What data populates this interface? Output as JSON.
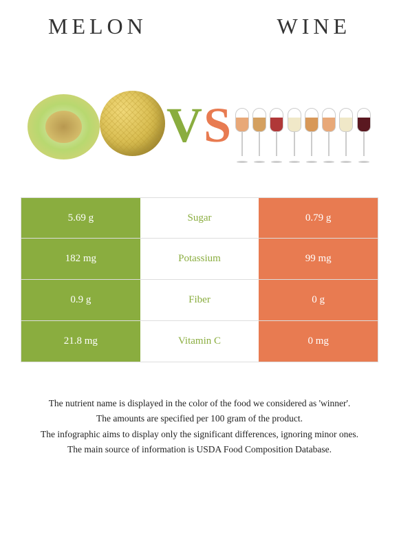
{
  "header": {
    "left": "MELON",
    "right": "WINE"
  },
  "vs": {
    "v": "V",
    "s": "S"
  },
  "colors": {
    "green": "#8aad3f",
    "orange": "#e87b51",
    "border": "#dddddd",
    "text": "#333333"
  },
  "wine_glasses": [
    "#e8a878",
    "#d4a060",
    "#b03838",
    "#f0e8c8",
    "#d89858",
    "#e8a878",
    "#f0e8c8",
    "#5a1820"
  ],
  "rows": [
    {
      "left": "5.69 g",
      "center": "Sugar",
      "winner": "green",
      "right": "0.79 g"
    },
    {
      "left": "182 mg",
      "center": "Potassium",
      "winner": "green",
      "right": "99 mg"
    },
    {
      "left": "0.9 g",
      "center": "Fiber",
      "winner": "green",
      "right": "0 g"
    },
    {
      "left": "21.8 mg",
      "center": "Vitamin C",
      "winner": "green",
      "right": "0 mg"
    }
  ],
  "footer": [
    "The nutrient name is displayed in the color of the food we considered as 'winner'.",
    "The amounts are specified per 100 gram of the product.",
    "The infographic aims to display only the significant differences, ignoring minor ones.",
    "The main source of information is USDA Food Composition Database."
  ]
}
